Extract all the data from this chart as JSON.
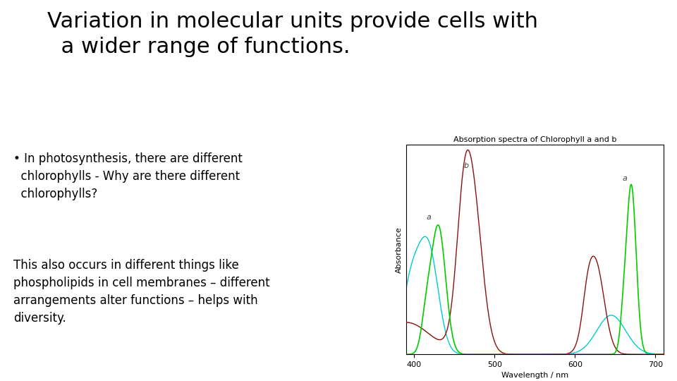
{
  "title_line1": "Variation in molecular units provide cells with",
  "title_line2": "  a wider range of functions.",
  "bullet_text": "• In photosynthesis, there are different\n  chlorophylls - Why are there different\n  chlorophylls?",
  "bottom_text": "This also occurs in different things like\nphospholipids in cell membranes – different\narrangements alter functions – helps with\ndiversity.",
  "chart_title": "Absorption spectra of Chlorophyll a and b",
  "xlabel": "Wavelength / nm",
  "ylabel": "Absorbance",
  "bg_color": "#ffffff",
  "title_color": "#000000",
  "text_color": "#000000",
  "chart_bg": "#ffffff",
  "green_color": "#00cc00",
  "cyan_color": "#00cccc",
  "red_color": "#8b1010"
}
